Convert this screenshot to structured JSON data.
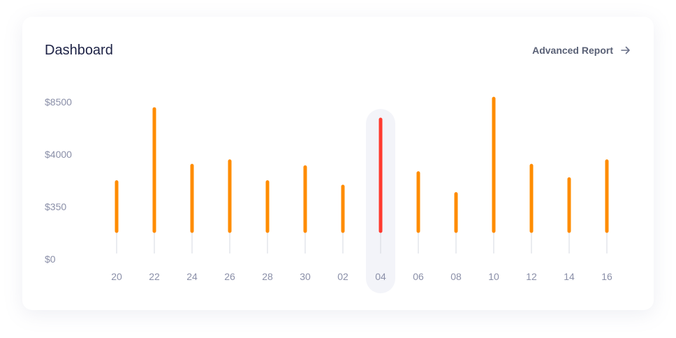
{
  "header": {
    "title": "Dashboard",
    "report_link_label": "Advanced Report",
    "report_link_icon": "arrow-right-icon"
  },
  "colors": {
    "bar": "#ff8c00",
    "bar_highlight": "#ff3b30",
    "highlight_bg": "#f3f4f9",
    "stem": "#d6d8e0"
  },
  "chart_data": {
    "type": "bar",
    "categories": [
      "20",
      "22",
      "24",
      "26",
      "28",
      "30",
      "02",
      "04",
      "06",
      "08",
      "10",
      "12",
      "14",
      "16"
    ],
    "values": [
      3300,
      8200,
      4400,
      4700,
      3300,
      4300,
      3000,
      7500,
      3900,
      2500,
      8900,
      4400,
      3500,
      4700
    ],
    "highlighted_category": "04",
    "y_ticks": [
      "$0",
      "$350",
      "$4000",
      "$8500"
    ],
    "ylim": [
      0,
      9000
    ],
    "grid": false,
    "legend": "none"
  }
}
